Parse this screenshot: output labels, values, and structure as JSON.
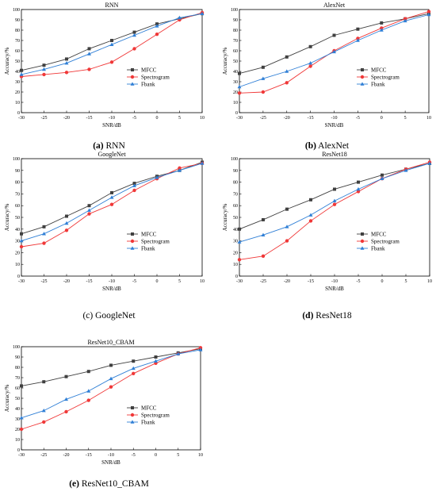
{
  "series_style": [
    {
      "color": "#404040",
      "marker": "square"
    },
    {
      "color": "#f03838",
      "marker": "circle"
    },
    {
      "color": "#2f7fd6",
      "marker": "triangle"
    }
  ],
  "chart_data": [
    {
      "type": "line",
      "title": "RNN",
      "caption_letter": "(a)",
      "caption_text": "RNN",
      "xlabel": "SNR/dB",
      "ylabel": "Accuracy/%",
      "x": [
        -30,
        -25,
        -20,
        -15,
        -10,
        -5,
        0,
        5,
        10
      ],
      "xlim": [
        -30,
        10
      ],
      "ylim": [
        0,
        100
      ],
      "y_ticks": [
        0,
        10,
        20,
        30,
        40,
        50,
        60,
        70,
        80,
        90,
        100
      ],
      "legend_position": "lower-right",
      "series": [
        {
          "name": "MFCC",
          "values": [
            41,
            46,
            52,
            62,
            70,
            78,
            86,
            91,
            96
          ]
        },
        {
          "name": "Spectrogram",
          "values": [
            35,
            37,
            39,
            42,
            49,
            62,
            76,
            90,
            97
          ]
        },
        {
          "name": "Fbank",
          "values": [
            37,
            42,
            48,
            57,
            66,
            75,
            84,
            92,
            96
          ]
        }
      ]
    },
    {
      "type": "line",
      "title": "AlexNet",
      "caption_letter": "(b)",
      "caption_text": "AlexNet",
      "xlabel": "SNR/dB",
      "ylabel": "Accuracy/%",
      "x": [
        -30,
        -25,
        -20,
        -15,
        -10,
        -5,
        0,
        5,
        10
      ],
      "xlim": [
        -30,
        10
      ],
      "ylim": [
        0,
        100
      ],
      "y_ticks": [
        0,
        10,
        20,
        30,
        40,
        50,
        60,
        70,
        80,
        90,
        100
      ],
      "legend_position": "lower-right",
      "series": [
        {
          "name": "MFCC",
          "values": [
            38,
            44,
            54,
            64,
            75,
            81,
            87,
            91,
            96
          ]
        },
        {
          "name": "Spectrogram",
          "values": [
            19,
            20,
            29,
            45,
            60,
            72,
            82,
            91,
            98
          ]
        },
        {
          "name": "Fbank",
          "values": [
            25,
            33,
            40,
            48,
            59,
            70,
            80,
            89,
            95
          ]
        }
      ]
    },
    {
      "type": "line",
      "title": "GoogleNet",
      "caption_letter": "(c)",
      "caption_text": "GoogleNet",
      "xlabel": "SNR/dB",
      "ylabel": "Accuracy/%",
      "x": [
        -30,
        -25,
        -20,
        -15,
        -10,
        -5,
        0,
        5,
        10
      ],
      "xlim": [
        -30,
        10
      ],
      "ylim": [
        0,
        100
      ],
      "y_ticks": [
        0,
        10,
        20,
        30,
        40,
        50,
        60,
        70,
        80,
        90,
        100
      ],
      "legend_position": "lower-right",
      "series": [
        {
          "name": "MFCC",
          "values": [
            36,
            42,
            51,
            60,
            71,
            79,
            85,
            90,
            97
          ]
        },
        {
          "name": "Spectrogram",
          "values": [
            25,
            28,
            39,
            53,
            61,
            73,
            83,
            92,
            96
          ]
        },
        {
          "name": "Fbank",
          "values": [
            30,
            36,
            45,
            56,
            67,
            77,
            84,
            90,
            96
          ]
        }
      ]
    },
    {
      "type": "line",
      "title": "ResNet18",
      "caption_letter": "(d)",
      "caption_text": "ResNet18",
      "xlabel": "SNR/dB",
      "ylabel": "Accuracy/%",
      "x": [
        -30,
        -25,
        -20,
        -15,
        -10,
        -5,
        0,
        5,
        10
      ],
      "xlim": [
        -30,
        10
      ],
      "ylim": [
        0,
        100
      ],
      "y_ticks": [
        0,
        10,
        20,
        30,
        40,
        50,
        60,
        70,
        80,
        90,
        100
      ],
      "legend_position": "lower-right",
      "series": [
        {
          "name": "MFCC",
          "values": [
            40,
            48,
            57,
            65,
            74,
            80,
            86,
            91,
            96
          ]
        },
        {
          "name": "Spectrogram",
          "values": [
            14,
            17,
            30,
            47,
            61,
            72,
            83,
            91,
            97
          ]
        },
        {
          "name": "Fbank",
          "values": [
            29,
            35,
            42,
            52,
            64,
            74,
            83,
            90,
            96
          ]
        }
      ]
    },
    {
      "type": "line",
      "title": "ResNet10_CBAM",
      "caption_letter": "(e)",
      "caption_text": "ResNet10_CBAM",
      "xlabel": "SNR/dB",
      "ylabel": "Accuracy/%",
      "x": [
        -30,
        -25,
        -20,
        -15,
        -10,
        -5,
        0,
        5,
        10
      ],
      "xlim": [
        -30,
        10
      ],
      "ylim": [
        0,
        100
      ],
      "y_ticks": [
        0,
        10,
        20,
        30,
        40,
        50,
        60,
        70,
        80,
        90,
        100
      ],
      "legend_position": "lower-right",
      "series": [
        {
          "name": "MFCC",
          "values": [
            62,
            66,
            71,
            76,
            82,
            86,
            90,
            94,
            98
          ]
        },
        {
          "name": "Spectrogram",
          "values": [
            20,
            27,
            37,
            48,
            61,
            74,
            84,
            93,
            99
          ]
        },
        {
          "name": "Fbank",
          "values": [
            31,
            38,
            49,
            57,
            69,
            79,
            86,
            93,
            97
          ]
        }
      ]
    }
  ]
}
